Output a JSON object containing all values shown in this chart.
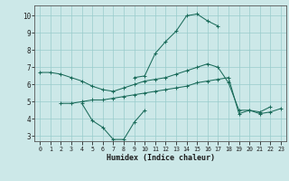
{
  "xlabel": "Humidex (Indice chaleur)",
  "xlim": [
    -0.5,
    23.5
  ],
  "ylim": [
    2.7,
    10.6
  ],
  "yticks": [
    3,
    4,
    5,
    6,
    7,
    8,
    9,
    10
  ],
  "xticks": [
    0,
    1,
    2,
    3,
    4,
    5,
    6,
    7,
    8,
    9,
    10,
    11,
    12,
    13,
    14,
    15,
    16,
    17,
    18,
    19,
    20,
    21,
    22,
    23
  ],
  "bg_color": "#cce8e8",
  "grid_color": "#99cccc",
  "line_color": "#1a6b5a",
  "line1_x": [
    0,
    1,
    2,
    3,
    4,
    5,
    6,
    7,
    8,
    9,
    10,
    11,
    12,
    13,
    14,
    15,
    16,
    17,
    18,
    19,
    20,
    21,
    22
  ],
  "line1_y": [
    6.7,
    6.7,
    6.6,
    6.4,
    6.2,
    5.9,
    5.7,
    5.6,
    5.8,
    6.0,
    6.2,
    6.3,
    6.4,
    6.6,
    6.8,
    7.0,
    7.2,
    7.0,
    6.1,
    4.5,
    4.5,
    4.4,
    4.7
  ],
  "line2_x": [
    4,
    5,
    6,
    7,
    8,
    9,
    10
  ],
  "line2_y": [
    4.9,
    3.9,
    3.5,
    2.8,
    2.8,
    3.8,
    4.5
  ],
  "line3_x": [
    2,
    3,
    4,
    5,
    6,
    7,
    8,
    9,
    10,
    11,
    12,
    13,
    14,
    15,
    16,
    17,
    18,
    19,
    20,
    21,
    22,
    23
  ],
  "line3_y": [
    4.9,
    4.9,
    5.0,
    5.1,
    5.1,
    5.2,
    5.3,
    5.4,
    5.5,
    5.6,
    5.7,
    5.8,
    5.9,
    6.1,
    6.2,
    6.3,
    6.4,
    4.3,
    4.5,
    4.3,
    4.4,
    4.6
  ],
  "line4_x": [
    9,
    10,
    11,
    12,
    13,
    14,
    15,
    16,
    17
  ],
  "line4_y": [
    6.4,
    6.5,
    7.8,
    8.5,
    9.1,
    10.0,
    10.1,
    9.7,
    9.4
  ]
}
